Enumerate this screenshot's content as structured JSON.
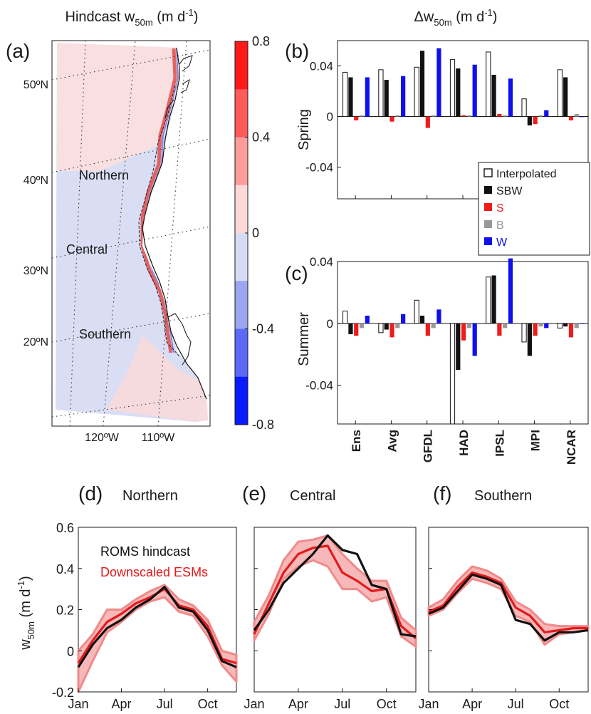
{
  "panel_a": {
    "letter": "(a)",
    "title_main": "Hindcast w",
    "title_sub": "50m",
    "title_unit_pre": " (m d",
    "title_unit_sup": "-1",
    "title_unit_post": ")",
    "lat_labels": [
      "50ºN",
      "40ºN",
      "30ºN",
      "20ºN"
    ],
    "lon_labels": [
      "120ºW",
      "110ºW"
    ],
    "regions": [
      "Northern",
      "Central",
      "Southern"
    ],
    "colorbar": {
      "ticks": [
        "0.8",
        "0.4",
        "0",
        "-0.4",
        "-0.8"
      ],
      "colors": [
        "#ff1a1a",
        "#ff5a5a",
        "#ff9d9d",
        "#ffd9d9",
        "#d6dcf5",
        "#9aa6ef",
        "#5a6af5",
        "#0a1aff"
      ]
    }
  },
  "delta_title": {
    "main": "Δw",
    "sub": "50m",
    "unit_pre": " (m d",
    "unit_sup": "-1",
    "unit_post": ")"
  },
  "bar_panels": {
    "categories": [
      "Ens",
      "Avg",
      "GFDL",
      "HAD",
      "IPSL",
      "MPI",
      "NCAR"
    ],
    "ytick_labels": [
      "0.04",
      "0",
      "-0.04"
    ],
    "legend": [
      "Interpolated",
      "SBW",
      "S",
      "B",
      "W"
    ],
    "colors": {
      "Interpolated": "#ffffff",
      "SBW": "#111111",
      "S": "#ee1c1c",
      "B": "#999999",
      "W": "#1010ee"
    },
    "spring": {
      "letter": "(b)",
      "ylabel": "Spring"
    },
    "summer": {
      "letter": "(c)",
      "ylabel": "Summer"
    }
  },
  "line_panels": {
    "ylabel_main": "w",
    "ylabel_sub": "50m",
    "ylabel_unit_pre": " (m d",
    "ylabel_unit_sup": "-1",
    "ylabel_unit_post": ")",
    "ytick_labels": [
      "0.6",
      "0.4",
      "0.2",
      "0",
      "-0.2"
    ],
    "xtick_labels": [
      "Jan",
      "Apr",
      "Jul",
      "Oct"
    ],
    "legend": {
      "hindcast": "ROMS hindcast",
      "esm": "Downscaled ESMs"
    },
    "legend_colors": {
      "hindcast": "#111111",
      "esm": "#e31a1c"
    },
    "panels": [
      {
        "letter": "(d)",
        "title": "Northern"
      },
      {
        "letter": "(e)",
        "title": "Central"
      },
      {
        "letter": "(f)",
        "title": "Southern"
      }
    ]
  },
  "chart_data": [
    {
      "type": "bar",
      "panel": "(b)",
      "ylabel": "Spring",
      "ylim": [
        -0.065,
        0.06
      ],
      "categories": [
        "Ens",
        "Avg",
        "GFDL",
        "HAD",
        "IPSL",
        "MPI",
        "NCAR"
      ],
      "series": [
        {
          "name": "Interpolated",
          "values": [
            0.035,
            0.037,
            0.039,
            0.045,
            0.051,
            0.014,
            0.037
          ]
        },
        {
          "name": "SBW",
          "values": [
            0.031,
            0.029,
            0.052,
            0.038,
            0.033,
            -0.007,
            0.031
          ]
        },
        {
          "name": "S",
          "values": [
            -0.003,
            -0.004,
            -0.009,
            0.001,
            0.002,
            -0.006,
            -0.003
          ]
        },
        {
          "name": "B",
          "values": [
            0.001,
            0.001,
            0.001,
            0.001,
            0.001,
            0.001,
            0.002
          ]
        },
        {
          "name": "W",
          "values": [
            0.031,
            0.032,
            0.054,
            0.041,
            0.03,
            0.005,
            0.0
          ]
        }
      ]
    },
    {
      "type": "bar",
      "panel": "(c)",
      "ylabel": "Summer",
      "ylim": [
        -0.065,
        0.04
      ],
      "categories": [
        "Ens",
        "Avg",
        "GFDL",
        "HAD",
        "IPSL",
        "MPI",
        "NCAR"
      ],
      "series": [
        {
          "name": "Interpolated",
          "values": [
            0.008,
            -0.006,
            0.015,
            -0.065,
            0.03,
            -0.012,
            -0.003
          ]
        },
        {
          "name": "SBW",
          "values": [
            -0.007,
            -0.004,
            0.005,
            -0.03,
            0.031,
            -0.021,
            -0.002
          ]
        },
        {
          "name": "S",
          "values": [
            -0.008,
            -0.009,
            -0.008,
            -0.011,
            -0.008,
            -0.008,
            -0.009
          ]
        },
        {
          "name": "B",
          "values": [
            -0.003,
            -0.003,
            -0.003,
            -0.003,
            -0.003,
            -0.002,
            -0.003
          ]
        },
        {
          "name": "W",
          "values": [
            0.005,
            0.006,
            0.009,
            -0.021,
            0.042,
            -0.003,
            0.0
          ]
        }
      ]
    },
    {
      "type": "line",
      "panel": "(d)",
      "title": "Northern",
      "x": [
        "Jan",
        "Feb",
        "Mar",
        "Apr",
        "May",
        "Jun",
        "Jul",
        "Aug",
        "Sep",
        "Oct",
        "Nov",
        "Dec"
      ],
      "ylim": [
        -0.2,
        0.6
      ],
      "series": [
        {
          "name": "ROMS hindcast",
          "values": [
            -0.08,
            0.03,
            0.11,
            0.15,
            0.21,
            0.25,
            0.31,
            0.21,
            0.19,
            0.1,
            -0.05,
            -0.08
          ]
        },
        {
          "name": "Downscaled ESMs",
          "values": [
            -0.06,
            0.05,
            0.14,
            0.18,
            0.23,
            0.26,
            0.3,
            0.22,
            0.2,
            0.12,
            -0.04,
            -0.06
          ]
        },
        {
          "name": "range_upper",
          "values": [
            0.0,
            0.08,
            0.2,
            0.2,
            0.25,
            0.29,
            0.32,
            0.25,
            0.22,
            0.15,
            0.0,
            -0.02
          ]
        },
        {
          "name": "range_lower",
          "values": [
            -0.2,
            -0.05,
            0.09,
            0.14,
            0.2,
            0.24,
            0.26,
            0.19,
            0.17,
            0.07,
            -0.07,
            -0.15
          ]
        }
      ]
    },
    {
      "type": "line",
      "panel": "(e)",
      "title": "Central",
      "x": [
        "Jan",
        "Feb",
        "Mar",
        "Apr",
        "May",
        "Jun",
        "Jul",
        "Aug",
        "Sep",
        "Oct",
        "Nov",
        "Dec"
      ],
      "ylim": [
        -0.2,
        0.6
      ],
      "series": [
        {
          "name": "ROMS hindcast",
          "values": [
            0.1,
            0.2,
            0.33,
            0.4,
            0.47,
            0.56,
            0.49,
            0.47,
            0.32,
            0.3,
            0.08,
            0.07
          ]
        },
        {
          "name": "Downscaled ESMs",
          "values": [
            0.08,
            0.23,
            0.38,
            0.47,
            0.5,
            0.51,
            0.38,
            0.34,
            0.29,
            0.3,
            0.12,
            0.06
          ]
        },
        {
          "name": "range_upper",
          "values": [
            0.14,
            0.27,
            0.44,
            0.53,
            0.54,
            0.56,
            0.47,
            0.4,
            0.34,
            0.34,
            0.16,
            0.1
          ]
        },
        {
          "name": "range_lower",
          "values": [
            0.05,
            0.18,
            0.35,
            0.41,
            0.44,
            0.41,
            0.3,
            0.3,
            0.24,
            0.26,
            0.07,
            0.02
          ]
        }
      ]
    },
    {
      "type": "line",
      "panel": "(f)",
      "title": "Southern",
      "x": [
        "Jan",
        "Feb",
        "Mar",
        "Apr",
        "May",
        "Jun",
        "Jul",
        "Aug",
        "Sep",
        "Oct",
        "Nov",
        "Dec"
      ],
      "ylim": [
        -0.2,
        0.6
      ],
      "series": [
        {
          "name": "ROMS hindcast",
          "values": [
            0.18,
            0.21,
            0.29,
            0.37,
            0.35,
            0.32,
            0.15,
            0.13,
            0.05,
            0.09,
            0.09,
            0.1
          ]
        },
        {
          "name": "Downscaled ESMs",
          "values": [
            0.19,
            0.22,
            0.31,
            0.38,
            0.36,
            0.33,
            0.21,
            0.17,
            0.09,
            0.1,
            0.11,
            0.11
          ]
        },
        {
          "name": "range_upper",
          "values": [
            0.21,
            0.25,
            0.34,
            0.41,
            0.39,
            0.35,
            0.24,
            0.2,
            0.13,
            0.12,
            0.12,
            0.12
          ]
        },
        {
          "name": "range_lower",
          "values": [
            0.17,
            0.2,
            0.28,
            0.35,
            0.33,
            0.3,
            0.17,
            0.14,
            0.03,
            0.08,
            0.09,
            0.1
          ]
        }
      ]
    }
  ]
}
